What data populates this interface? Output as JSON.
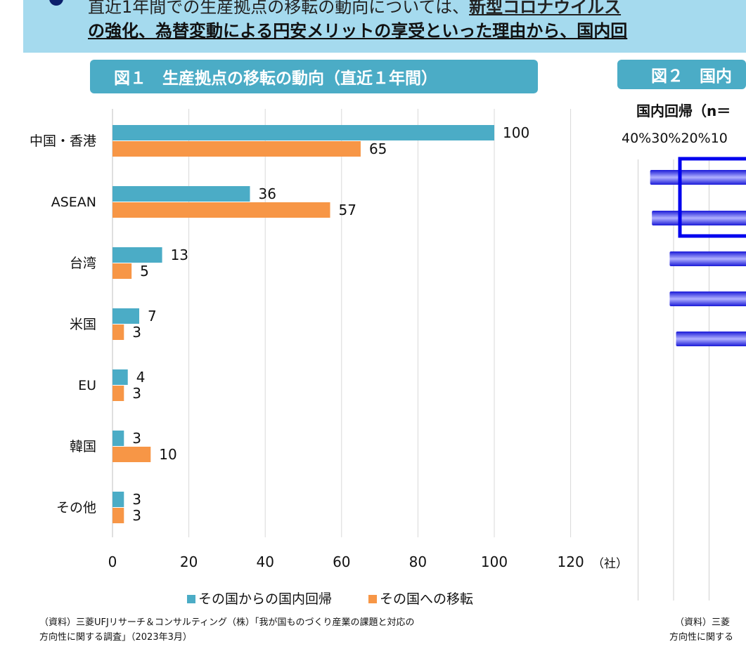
{
  "banner": {
    "line1_plain": "直近1年間での生産拠点の移転の動向については、",
    "line1_bold": "新型コロナウイルス",
    "line2": "の強化、為替変動による円安メリットの享受といった理由から、国内回"
  },
  "fig1": {
    "title": "図１　生産拠点の移転の動向（直近１年間）"
  },
  "fig2": {
    "title": "図２　国内",
    "subtitle": "国内回帰（n＝",
    "ticks": [
      "40%",
      "30%",
      "20%",
      "10"
    ],
    "source": [
      "（資料）三菱",
      "方向性に関する"
    ]
  },
  "chart_data": [
    {
      "type": "bar",
      "orientation": "horizontal",
      "categories": [
        "中国・香港",
        "ASEAN",
        "台湾",
        "米国",
        "EU",
        "韓国",
        "その他"
      ],
      "series": [
        {
          "name": "その国からの国内回帰",
          "color": "#4bacc6",
          "values": [
            100,
            36,
            13,
            7,
            4,
            3,
            3
          ]
        },
        {
          "name": "その国への移転",
          "color": "#f79646",
          "values": [
            65,
            57,
            5,
            3,
            3,
            10,
            3
          ]
        }
      ],
      "xticks": [
        "0",
        "20",
        "40",
        "60",
        "80",
        "100",
        "120"
      ],
      "xunit": "（社）",
      "xlim": [
        0,
        120
      ],
      "grid": true,
      "legend": "bottom"
    },
    {
      "type": "bar",
      "orientation": "horizontal",
      "reversed": true,
      "values_percent": [
        27,
        26.5,
        21.5,
        21.5,
        19.7
      ],
      "color": "#3030e0",
      "highlight_color": "#0000ee",
      "xlim": [
        0,
        40
      ],
      "grid": true
    }
  ],
  "source": [
    "（資料）三菱UFJリサーチ＆コンサルティング（株）「我が国ものづくり産業の課題と対応の",
    "方向性に関する調査」（2023年3月）"
  ]
}
